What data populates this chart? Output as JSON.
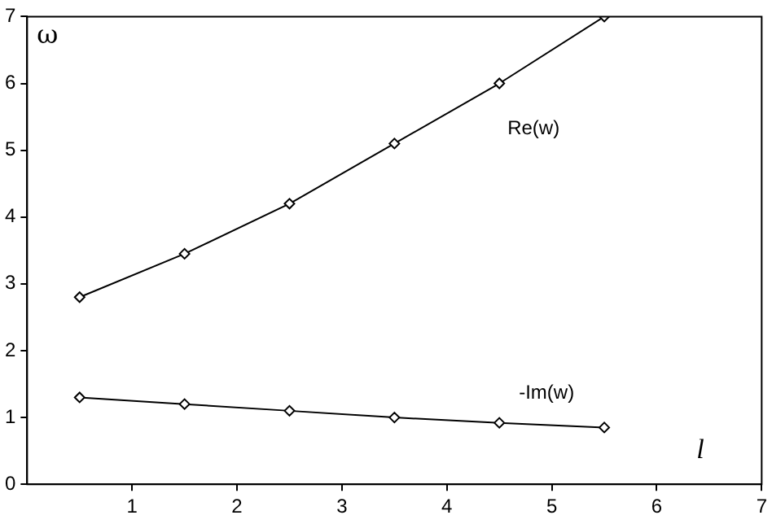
{
  "chart_data": {
    "type": "line",
    "xlabel": "l",
    "ylabel": "ω",
    "x": [
      0.5,
      1.5,
      2.5,
      3.5,
      4.5,
      5.5
    ],
    "series": [
      {
        "name": "Re(w)",
        "color": "#000000",
        "values": [
          2.8,
          3.45,
          4.2,
          5.1,
          6.0,
          7.0
        ]
      },
      {
        "name": "-Im(w)",
        "color": "#000000",
        "values": [
          1.3,
          1.2,
          1.1,
          1.0,
          0.92,
          0.85
        ]
      }
    ],
    "xlim": [
      0,
      7
    ],
    "xticks": [
      1,
      2,
      3,
      4,
      5,
      6,
      7
    ],
    "ylim": [
      0,
      7
    ],
    "yticks": [
      0,
      1,
      2,
      3,
      4,
      5,
      6,
      7
    ],
    "grid": false,
    "legend": false,
    "marker": "diamond",
    "line_style": "solid"
  }
}
